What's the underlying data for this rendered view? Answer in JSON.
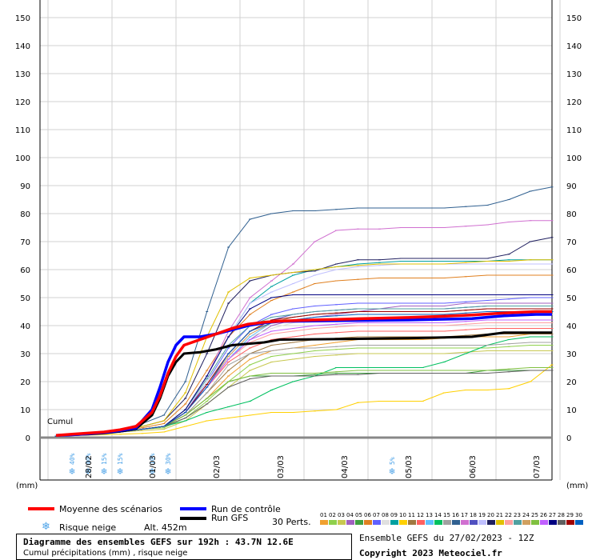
{
  "chart_data": {
    "type": "line",
    "title": "Diagramme des ensembles GEFS sur 192h : 43.7N 12.6E",
    "subtitle": "Cumul précipitations (mm) , risque neige",
    "ylabel": "(mm)",
    "ylim": [
      0,
      150
    ],
    "yticks": [
      0,
      10,
      20,
      30,
      40,
      50,
      60,
      70,
      80,
      90,
      100,
      110,
      120,
      130,
      140,
      150
    ],
    "xlim": [
      0,
      64
    ],
    "x_step_hours": 3,
    "x_tick_labels": [
      {
        "x": 6,
        "label": "28/02"
      },
      {
        "x": 14,
        "label": "01/03"
      },
      {
        "x": 22,
        "label": "02/03"
      },
      {
        "x": 30,
        "label": "03/03"
      },
      {
        "x": 38,
        "label": "04/03"
      },
      {
        "x": 46,
        "label": "05/03"
      },
      {
        "x": 54,
        "label": "06/03"
      },
      {
        "x": 62,
        "label": "07/03"
      }
    ],
    "corner_label": "Cumul",
    "grid": true,
    "snow_risk": [
      {
        "x": 4,
        "label": "40%"
      },
      {
        "x": 6,
        "label": "40%"
      },
      {
        "x": 8,
        "label": "15%"
      },
      {
        "x": 10,
        "label": "15%"
      },
      {
        "x": 14,
        "label": "10%"
      },
      {
        "x": 16,
        "label": "30%"
      },
      {
        "x": 44,
        "label": "5%"
      }
    ],
    "series": [
      {
        "name": "Moyenne des scénarios",
        "color": "#ff0000",
        "width": 3.5,
        "points": [
          [
            2,
            0.8
          ],
          [
            4,
            1.2
          ],
          [
            6,
            1.6
          ],
          [
            8,
            2
          ],
          [
            10,
            2.8
          ],
          [
            12,
            4
          ],
          [
            14,
            9
          ],
          [
            15,
            15
          ],
          [
            16,
            23
          ],
          [
            17,
            29
          ],
          [
            18,
            33
          ],
          [
            20,
            35
          ],
          [
            22,
            37
          ],
          [
            24,
            39
          ],
          [
            26,
            40.5
          ],
          [
            28,
            41.2
          ],
          [
            30,
            41.6
          ],
          [
            34,
            42
          ],
          [
            38,
            42.3
          ],
          [
            42,
            42.6
          ],
          [
            46,
            42.9
          ],
          [
            50,
            43.3
          ],
          [
            54,
            43.8
          ],
          [
            58,
            44.5
          ],
          [
            62,
            45
          ],
          [
            64,
            45
          ]
        ]
      },
      {
        "name": "Run de contrôle",
        "color": "#0000ff",
        "width": 3.5,
        "points": [
          [
            2,
            0.8
          ],
          [
            4,
            1
          ],
          [
            6,
            1.4
          ],
          [
            8,
            1.8
          ],
          [
            10,
            2.5
          ],
          [
            12,
            3.5
          ],
          [
            14,
            10
          ],
          [
            15,
            18
          ],
          [
            16,
            27
          ],
          [
            17,
            33
          ],
          [
            18,
            36
          ],
          [
            20,
            36
          ],
          [
            22,
            37
          ],
          [
            24,
            38.5
          ],
          [
            26,
            40
          ],
          [
            28,
            41
          ],
          [
            30,
            41.5
          ],
          [
            38,
            41.8
          ],
          [
            46,
            42
          ],
          [
            54,
            42.5
          ],
          [
            58,
            43.5
          ],
          [
            62,
            44
          ],
          [
            64,
            44
          ]
        ]
      },
      {
        "name": "Run GFS",
        "color": "#000000",
        "width": 3,
        "points": [
          [
            2,
            0.8
          ],
          [
            4,
            1
          ],
          [
            6,
            1.2
          ],
          [
            8,
            1.6
          ],
          [
            10,
            2.2
          ],
          [
            12,
            3.2
          ],
          [
            14,
            8
          ],
          [
            15,
            14
          ],
          [
            16,
            22
          ],
          [
            17,
            27
          ],
          [
            18,
            30
          ],
          [
            20,
            30.5
          ],
          [
            22,
            31.5
          ],
          [
            24,
            33
          ],
          [
            26,
            33.5
          ],
          [
            28,
            34
          ],
          [
            30,
            35
          ],
          [
            38,
            35.2
          ],
          [
            46,
            35.5
          ],
          [
            54,
            36
          ],
          [
            58,
            37.5
          ],
          [
            62,
            37.5
          ],
          [
            64,
            37.5
          ]
        ]
      }
    ],
    "perturbations": [
      {
        "num": "01",
        "color": "#f0a030",
        "values": [
          0.5,
          1,
          1.5,
          2,
          3,
          4,
          8,
          14,
          22,
          28,
          31,
          32,
          33,
          34,
          35,
          35,
          35,
          35,
          35.5,
          36,
          36,
          36,
          37,
          37
        ]
      },
      {
        "num": "02",
        "color": "#8fd04c",
        "values": [
          0.5,
          1,
          1.5,
          2,
          3,
          3.5,
          7,
          13,
          20,
          26,
          29,
          30,
          31,
          31.5,
          32,
          32,
          32,
          32,
          32,
          32,
          32,
          32.5,
          33,
          33
        ]
      },
      {
        "name_hidden": true,
        "num": "03",
        "color": "#c8c850",
        "values": [
          0.5,
          1,
          1.5,
          2,
          2.5,
          3,
          6,
          12,
          18,
          24,
          27,
          28,
          29,
          29.5,
          30,
          30,
          30,
          30,
          30,
          30.5,
          31,
          31,
          31,
          31
        ]
      },
      {
        "num": "04",
        "color": "#a060c0",
        "values": [
          0.5,
          1,
          1.5,
          2,
          3,
          4,
          9,
          18,
          28,
          35,
          40,
          42,
          43,
          44,
          45,
          46,
          47,
          47,
          47,
          48,
          48,
          48,
          48,
          48
        ]
      },
      {
        "num": "05",
        "color": "#40a040",
        "values": [
          0.5,
          1,
          1.5,
          2,
          3,
          4,
          8,
          14,
          20,
          22,
          22,
          22,
          22.5,
          23,
          23,
          23,
          23,
          23,
          23,
          23,
          24,
          24,
          24,
          24
        ]
      },
      {
        "num": "06",
        "color": "#e08020",
        "values": [
          0.5,
          1,
          1.5,
          2.5,
          3.5,
          5,
          12,
          24,
          36,
          44,
          49,
          52,
          55,
          56,
          56.5,
          57,
          57,
          57,
          57,
          57.5,
          58,
          58,
          58,
          58
        ]
      },
      {
        "num": "07",
        "color": "#6060ff",
        "values": [
          0.5,
          1,
          1.5,
          2,
          3,
          4,
          9,
          20,
          32,
          40,
          44,
          46,
          47,
          47.5,
          48,
          48,
          48,
          48,
          48,
          48.5,
          49,
          49.5,
          50,
          50
        ]
      },
      {
        "num": "08",
        "color": "#e0e0e0",
        "values": [
          0.5,
          1,
          1.5,
          2,
          3,
          4,
          10,
          20,
          30,
          36,
          39,
          41,
          42,
          42.5,
          43,
          43,
          43,
          43,
          43,
          43.5,
          44,
          44,
          44,
          44
        ]
      },
      {
        "num": "09",
        "color": "#00a0a0",
        "values": [
          0.5,
          1,
          1.5,
          2,
          3,
          4,
          10,
          22,
          36,
          48,
          54,
          58,
          60,
          61,
          62,
          62.5,
          63,
          63,
          63,
          63,
          63,
          63.5,
          63.5,
          63.5
        ]
      },
      {
        "num": "10",
        "color": "#ffd000",
        "values": [
          0.5,
          0.8,
          1,
          1.2,
          1.5,
          2,
          4,
          6,
          7,
          8,
          9,
          9,
          9.5,
          10,
          12.5,
          13,
          13,
          13,
          16,
          17,
          17,
          17.5,
          20,
          26
        ]
      },
      {
        "num": "11",
        "color": "#a07840",
        "values": [
          0.5,
          1,
          1.5,
          2,
          3,
          4,
          8,
          16,
          24,
          30,
          33,
          34,
          35,
          35.5,
          36,
          36,
          36,
          36,
          36,
          36.5,
          37,
          37,
          37,
          37
        ]
      },
      {
        "num": "12",
        "color": "#ff6060",
        "values": [
          0.5,
          1,
          1.5,
          2,
          3,
          4,
          9,
          18,
          27,
          32,
          35,
          36,
          37,
          37.5,
          38,
          38,
          38,
          38,
          38,
          38.5,
          39,
          39,
          39,
          39
        ]
      },
      {
        "num": "13",
        "color": "#60c0ff",
        "values": [
          0.5,
          1,
          1.5,
          2,
          3,
          4,
          9,
          18,
          28,
          36,
          41,
          43,
          44,
          44.5,
          45,
          45,
          45,
          45,
          45,
          45.5,
          46,
          46,
          46,
          46
        ]
      },
      {
        "num": "14",
        "color": "#00c060",
        "values": [
          0.5,
          1,
          1.5,
          2,
          3,
          4,
          6,
          9,
          11,
          13,
          17,
          20,
          22,
          25,
          25,
          25,
          25,
          25,
          27,
          30,
          33,
          35,
          36,
          36
        ]
      },
      {
        "num": "15",
        "color": "#a0a0a0",
        "values": [
          0.5,
          1,
          1.5,
          2,
          3,
          4,
          8,
          16,
          26,
          30,
          31,
          32,
          32,
          32.5,
          33,
          33,
          33,
          33,
          33,
          33,
          33,
          33.5,
          34,
          34
        ]
      },
      {
        "num": "16",
        "color": "#306090",
        "values": [
          0.5,
          1,
          1.5,
          3,
          5,
          8,
          20,
          45,
          68,
          78,
          80,
          81,
          81,
          81.5,
          82,
          82,
          82,
          82,
          82,
          82.5,
          83,
          85,
          88,
          89.5
        ]
      },
      {
        "num": "17",
        "color": "#d070d0",
        "values": [
          0.5,
          1,
          1.5,
          2,
          3,
          4,
          10,
          22,
          38,
          50,
          56,
          62,
          70,
          74,
          74.5,
          74.5,
          75,
          75,
          75,
          75.5,
          76,
          77,
          77.5,
          77.5
        ]
      },
      {
        "num": "18",
        "color": "#5050c0",
        "values": [
          0.5,
          1,
          1.5,
          2,
          3,
          4,
          9,
          19,
          30,
          38,
          42,
          44,
          45,
          45.5,
          46,
          46,
          46,
          46,
          46,
          46.5,
          47,
          47,
          47,
          47
        ]
      },
      {
        "num": "19",
        "color": "#c0c0ff",
        "values": [
          0.5,
          1,
          1.5,
          2,
          3,
          4,
          10,
          22,
          36,
          48,
          52,
          55,
          58,
          60,
          61,
          61.5,
          62,
          62,
          62,
          62,
          62,
          62,
          62,
          62
        ]
      },
      {
        "num": "20",
        "color": "#202060",
        "values": [
          0.5,
          1,
          1.5,
          2.5,
          4,
          6,
          14,
          30,
          48,
          56,
          58,
          59,
          59.5,
          62,
          63.5,
          63.5,
          64,
          64,
          64,
          64,
          64,
          65.5,
          70,
          71.5
        ]
      },
      {
        "num": "21",
        "color": "#e0c000",
        "values": [
          0.5,
          1,
          1.5,
          2.5,
          4,
          6,
          16,
          36,
          52,
          57,
          58,
          59,
          60,
          61,
          61.5,
          62,
          62,
          62,
          62,
          62.5,
          63,
          63,
          63.5,
          63.5
        ]
      },
      {
        "num": "22",
        "color": "#ffa0a0",
        "values": [
          0.5,
          1,
          1.5,
          2,
          3,
          4,
          9,
          18,
          28,
          34,
          37,
          38,
          39,
          39.5,
          40,
          40,
          40,
          40,
          40,
          40.5,
          41,
          41,
          41,
          41
        ]
      },
      {
        "num": "23",
        "color": "#50a0a0",
        "values": [
          0.5,
          1,
          1.5,
          2,
          3,
          4,
          10,
          21,
          33,
          40,
          43,
          44,
          45,
          45.5,
          46,
          46,
          46,
          46,
          46,
          46.5,
          47,
          47,
          47,
          47
        ]
      },
      {
        "num": "24",
        "color": "#d0a060",
        "values": [
          0.5,
          1,
          1.5,
          2,
          3,
          4,
          9,
          18,
          29,
          37,
          41,
          43,
          44,
          44.5,
          45,
          45,
          45,
          45,
          45,
          45.5,
          46,
          46,
          46,
          46
        ]
      },
      {
        "num": "25",
        "color": "#80c040",
        "values": [
          0.5,
          1,
          1.5,
          2,
          3,
          4,
          8,
          14,
          20,
          22,
          23,
          23,
          23,
          23.5,
          24,
          24,
          24,
          24,
          24,
          24,
          24,
          24.5,
          25,
          25
        ]
      },
      {
        "num": "26",
        "color": "#c060ff",
        "values": [
          0.5,
          1,
          1.5,
          2,
          3,
          4,
          9,
          18,
          28,
          35,
          38,
          39,
          40,
          40.5,
          41,
          41,
          41,
          41,
          41,
          41.5,
          42,
          42,
          42,
          42
        ]
      },
      {
        "num": "27",
        "color": "#000080",
        "values": [
          0.5,
          1,
          1.5,
          2,
          3,
          4,
          10,
          22,
          36,
          46,
          50,
          51,
          51,
          51,
          51,
          51,
          51,
          51,
          51,
          51,
          51,
          51,
          51,
          51
        ]
      },
      {
        "num": "28",
        "color": "#606060",
        "values": [
          0.5,
          1,
          1.5,
          2,
          3,
          4,
          7,
          12,
          18,
          21,
          22,
          22,
          22,
          22.5,
          22.5,
          23,
          23,
          23,
          23,
          23,
          23,
          23.5,
          24,
          24
        ]
      },
      {
        "num": "29",
        "color": "#a00000",
        "values": [
          0.5,
          1,
          1.5,
          2,
          3,
          4,
          9,
          19,
          30,
          38,
          42,
          43,
          44,
          44.5,
          45,
          45,
          45,
          45,
          45,
          45.5,
          46,
          46,
          46,
          46
        ]
      },
      {
        "num": "30",
        "color": "#0060c0",
        "values": [
          0.5,
          1,
          1.5,
          2,
          3,
          4,
          9,
          18,
          30,
          38,
          41,
          42,
          43,
          43.5,
          44,
          44,
          44,
          44,
          44,
          44.5,
          45,
          45,
          45,
          45
        ]
      }
    ]
  },
  "legend": {
    "mean_label": "Moyenne des scénarios",
    "control_label": "Run de contrôle",
    "gfs_label": "Run GFS",
    "perts_label": "30 Perts.",
    "snow_label": "Risque neige",
    "alt_label": "Alt. 452m",
    "colors": {
      "mean": "#ff0000",
      "control": "#0000ff",
      "gfs": "#000000",
      "snow": "#4da3e8"
    }
  },
  "footer": {
    "ensemble": "Ensemble GEFS du 27/02/2023 - 12Z",
    "copyright": "Copyright 2023 Meteociel.fr"
  }
}
